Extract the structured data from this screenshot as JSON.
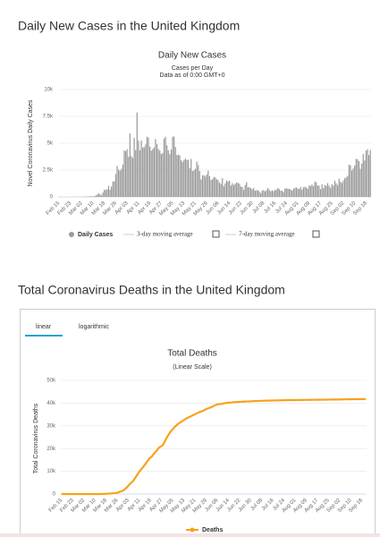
{
  "headings": [
    "Daily New Cases in the United Kingdom",
    "Total Coronavirus Deaths in the United Kingdom"
  ],
  "chart_data": [
    {
      "type": "bar",
      "title": "Daily New Cases",
      "subtitle": "Cases per Day",
      "note": "Data as of 0:00 GMT+0",
      "y_label": "Novel Coronavirus Daily Cases",
      "categories": [
        "Feb 15",
        null,
        null,
        null,
        null,
        null,
        null,
        null,
        "Feb 23",
        null,
        null,
        null,
        null,
        null,
        null,
        null,
        "Mar 02",
        null,
        null,
        null,
        null,
        null,
        null,
        null,
        "Mar 10",
        null,
        null,
        null,
        null,
        null,
        null,
        null,
        "Mar 18",
        null,
        null,
        null,
        null,
        null,
        null,
        null,
        "Mar 26",
        null,
        null,
        null,
        null,
        null,
        null,
        null,
        "Apr 03",
        null,
        null,
        null,
        null,
        null,
        null,
        null,
        "Apr 11",
        null,
        null,
        null,
        null,
        null,
        null,
        null,
        "Apr 19",
        null,
        null,
        null,
        null,
        null,
        null,
        null,
        "Apr 27",
        null,
        null,
        null,
        null,
        null,
        null,
        null,
        "May 05",
        null,
        null,
        null,
        null,
        null,
        null,
        null,
        "May 13",
        null,
        null,
        null,
        null,
        null,
        null,
        null,
        "May 21",
        null,
        null,
        null,
        null,
        null,
        null,
        null,
        "May 29",
        null,
        null,
        null,
        null,
        null,
        null,
        null,
        "Jun 06",
        null,
        null,
        null,
        null,
        null,
        null,
        null,
        "Jun 14",
        null,
        null,
        null,
        null,
        null,
        null,
        null,
        "Jun 22",
        null,
        null,
        null,
        null,
        null,
        null,
        null,
        "Jun 30",
        null,
        null,
        null,
        null,
        null,
        null,
        null,
        "Jul 08",
        null,
        null,
        null,
        null,
        null,
        null,
        null,
        "Jul 16",
        null,
        null,
        null,
        null,
        null,
        null,
        null,
        "Jul 24",
        null,
        null,
        null,
        null,
        null,
        null,
        null,
        "Aug 01",
        null,
        null,
        null,
        null,
        null,
        null,
        null,
        "Aug 09",
        null,
        null,
        null,
        null,
        null,
        null,
        null,
        "Aug 17",
        null,
        null,
        null,
        null,
        null,
        null,
        null,
        "Aug 25",
        null,
        null,
        null,
        null,
        null,
        null,
        null,
        "Sep 02",
        null,
        null,
        null,
        null,
        null,
        null,
        null,
        "Sep 10",
        null,
        null,
        null,
        null,
        null,
        null,
        null,
        "Sep 18",
        null,
        null,
        null
      ],
      "series": [
        {
          "name": "Daily Cases",
          "color": "#999999",
          "values": [
            0,
            0,
            0,
            0,
            0,
            0,
            0,
            0,
            0,
            0,
            0,
            0,
            3,
            5,
            10,
            12,
            4,
            12,
            11,
            35,
            30,
            48,
            43,
            67,
            46,
            67,
            134,
            208,
            342,
            251,
            152,
            407,
            676,
            643,
            714,
            1035,
            665,
            967,
            1427,
            1452,
            2129,
            2885,
            2546,
            2433,
            2619,
            3009,
            4324,
            4244,
            4450,
            3735,
            5903,
            3802,
            3634,
            5491,
            4344,
            7860,
            5233,
            4342,
            5252,
            4603,
            4617,
            4876,
            5599,
            5525,
            4676,
            4301,
            4451,
            4583,
            5386,
            4913,
            4463,
            4309,
            3996,
            4076,
            5432,
            5601,
            4806,
            4339,
            3985,
            4406,
            5611,
            5614,
            4649,
            3896,
            3923,
            3877,
            3403,
            3242,
            3446,
            3560,
            3450,
            3451,
            2684,
            3534,
            2412,
            2472,
            2615,
            3287,
            2959,
            2409,
            1625,
            2004,
            2013,
            1887,
            2095,
            2445,
            1936,
            1570,
            1653,
            1871,
            1805,
            1650,
            1557,
            1326,
            1205,
            1741,
            1003,
            1266,
            1541,
            1425,
            1514,
            1056,
            1279,
            1115,
            1218,
            1346,
            1295,
            1221,
            958,
            921,
            653,
            1118,
            1380,
            890,
            901,
            815,
            689,
            829,
            576,
            630,
            624,
            516,
            352,
            581,
            632,
            512,
            642,
            820,
            650,
            530,
            598,
            538,
            642,
            687,
            827,
            726,
            580,
            560,
            445,
            769,
            798,
            767,
            747,
            685,
            581,
            763,
            846,
            880,
            771,
            743,
            938,
            670,
            892,
            950,
            871,
            758,
            1062,
            1012,
            1148,
            1009,
            1441,
            1351,
            1062,
            1040,
            713,
            1182,
            812,
            1089,
            1033,
            1288,
            1041,
            853,
            1184,
            1048,
            1522,
            1276,
            1108,
            1715,
            1406,
            1295,
            1508,
            1735,
            1813,
            1940,
            2988,
            2948,
            2460,
            2659,
            2919,
            3539,
            3497,
            3330,
            2621,
            3105,
            3991,
            3395,
            4322,
            4422,
            3899,
            4368
          ]
        }
      ],
      "legend_extra": [
        "3-day moving average",
        "7-day moving average"
      ],
      "ylim": [
        0,
        10000
      ],
      "yticks": [
        0,
        {
          "value": 2500,
          "label": "2.5k"
        },
        {
          "value": 5000,
          "label": "5k"
        },
        {
          "value": 7500,
          "label": "7.5k"
        },
        {
          "value": 10000,
          "label": "10k"
        }
      ],
      "grid": true
    },
    {
      "type": "line",
      "tabs": [
        "linear",
        "logarithmic"
      ],
      "title": "Total Deaths",
      "subtitle": "(Linear Scale)",
      "y_label": "Total Coronavirus Deaths",
      "categories": [
        "Feb 15",
        null,
        null,
        null,
        null,
        null,
        null,
        null,
        "Feb 23",
        null,
        null,
        null,
        null,
        null,
        null,
        null,
        "Mar 02",
        null,
        null,
        null,
        null,
        null,
        null,
        null,
        "Mar 10",
        null,
        null,
        null,
        null,
        null,
        null,
        null,
        "Mar 18",
        null,
        null,
        null,
        null,
        null,
        null,
        null,
        "Mar 26",
        null,
        null,
        null,
        null,
        null,
        null,
        null,
        "Apr 03",
        null,
        null,
        null,
        null,
        null,
        null,
        null,
        "Apr 11",
        null,
        null,
        null,
        null,
        null,
        null,
        null,
        "Apr 19",
        null,
        null,
        null,
        null,
        null,
        null,
        null,
        "Apr 27",
        null,
        null,
        null,
        null,
        null,
        null,
        null,
        "May 05",
        null,
        null,
        null,
        null,
        null,
        null,
        null,
        "May 13",
        null,
        null,
        null,
        null,
        null,
        null,
        null,
        "May 21",
        null,
        null,
        null,
        null,
        null,
        null,
        null,
        "May 29",
        null,
        null,
        null,
        null,
        null,
        null,
        null,
        "Jun 06",
        null,
        null,
        null,
        null,
        null,
        null,
        null,
        "Jun 14",
        null,
        null,
        null,
        null,
        null,
        null,
        null,
        "Jun 22",
        null,
        null,
        null,
        null,
        null,
        null,
        null,
        "Jun 30",
        null,
        null,
        null,
        null,
        null,
        null,
        null,
        "Jul 08",
        null,
        null,
        null,
        null,
        null,
        null,
        null,
        "Jul 16",
        null,
        null,
        null,
        null,
        null,
        null,
        null,
        "Jul 24",
        null,
        null,
        null,
        null,
        null,
        null,
        null,
        "Aug 01",
        null,
        null,
        null,
        null,
        null,
        null,
        null,
        "Aug 09",
        null,
        null,
        null,
        null,
        null,
        null,
        null,
        "Aug 17",
        null,
        null,
        null,
        null,
        null,
        null,
        null,
        "Aug 25",
        null,
        null,
        null,
        null,
        null,
        null,
        null,
        "Sep 02",
        null,
        null,
        null,
        null,
        null,
        null,
        null,
        "Sep 10",
        null,
        null,
        null,
        null,
        null,
        null,
        null,
        "Sep 18",
        null,
        null,
        null
      ],
      "series": [
        {
          "name": "Deaths",
          "color": "#f7a21b",
          "values": [
            0,
            0,
            0,
            0,
            0,
            0,
            0,
            0,
            0,
            0,
            0,
            0,
            0,
            0,
            0,
            0,
            0,
            0,
            0,
            1,
            1,
            2,
            2,
            3,
            6,
            8,
            8,
            10,
            21,
            35,
            55,
            71,
            104,
            144,
            177,
            233,
            281,
            335,
            422,
            465,
            578,
            759,
            1019,
            1228,
            1408,
            1789,
            2352,
            2921,
            3605,
            4313,
            4934,
            5373,
            6159,
            7097,
            7978,
            8958,
            9875,
            10612,
            11329,
            12107,
            12868,
            13729,
            14576,
            15464,
            16060,
            16509,
            17337,
            18100,
            18738,
            19506,
            20319,
            20732,
            21092,
            21678,
            22800,
            24000,
            25100,
            26100,
            27000,
            27800,
            28500,
            29200,
            29800,
            30400,
            30900,
            31300,
            31700,
            32100,
            32500,
            32900,
            33300,
            33600,
            33900,
            34200,
            34500,
            34800,
            35100,
            35400,
            35700,
            36000,
            36200,
            36400,
            36700,
            37000,
            37300,
            37600,
            37800,
            38000,
            38300,
            38600,
            38900,
            39200,
            39400,
            39500,
            39550,
            39650,
            39800,
            39900,
            40000,
            40100,
            40150,
            40180,
            40260,
            40340,
            40400,
            40450,
            40500,
            40540,
            40560,
            40580,
            40620,
            40660,
            40700,
            40720,
            40730,
            40760,
            40800,
            40830,
            40870,
            40900,
            40920,
            40930,
            40940,
            40970,
            41000,
            41020,
            41040,
            41060,
            41080,
            41090,
            41100,
            41120,
            41140,
            41160,
            41170,
            41180,
            41190,
            41210,
            41230,
            41240,
            41260,
            41280,
            41290,
            41300,
            41310,
            41320,
            41330,
            41340,
            41350,
            41360,
            41360,
            41370,
            41380,
            41390,
            41400,
            41410,
            41420,
            41420,
            41430,
            41440,
            41450,
            41460,
            41470,
            41470,
            41480,
            41490,
            41500,
            41500,
            41510,
            41520,
            41520,
            41530,
            41540,
            41550,
            41560,
            41570,
            41580,
            41580,
            41590,
            41600,
            41610,
            41620,
            41630,
            41640,
            41650,
            41660,
            41670,
            41680,
            41690,
            41700,
            41710,
            41720,
            41730,
            41740,
            41750,
            41760,
            41770,
            41780,
            41790,
            41800
          ]
        }
      ],
      "ylim": [
        0,
        50000
      ],
      "yticks": [
        0,
        {
          "value": 10000,
          "label": "10k"
        },
        {
          "value": 20000,
          "label": "20k"
        },
        {
          "value": 30000,
          "label": "30k"
        },
        {
          "value": 40000,
          "label": "40k"
        },
        {
          "value": 50000,
          "label": "50k"
        }
      ],
      "grid": true
    }
  ]
}
